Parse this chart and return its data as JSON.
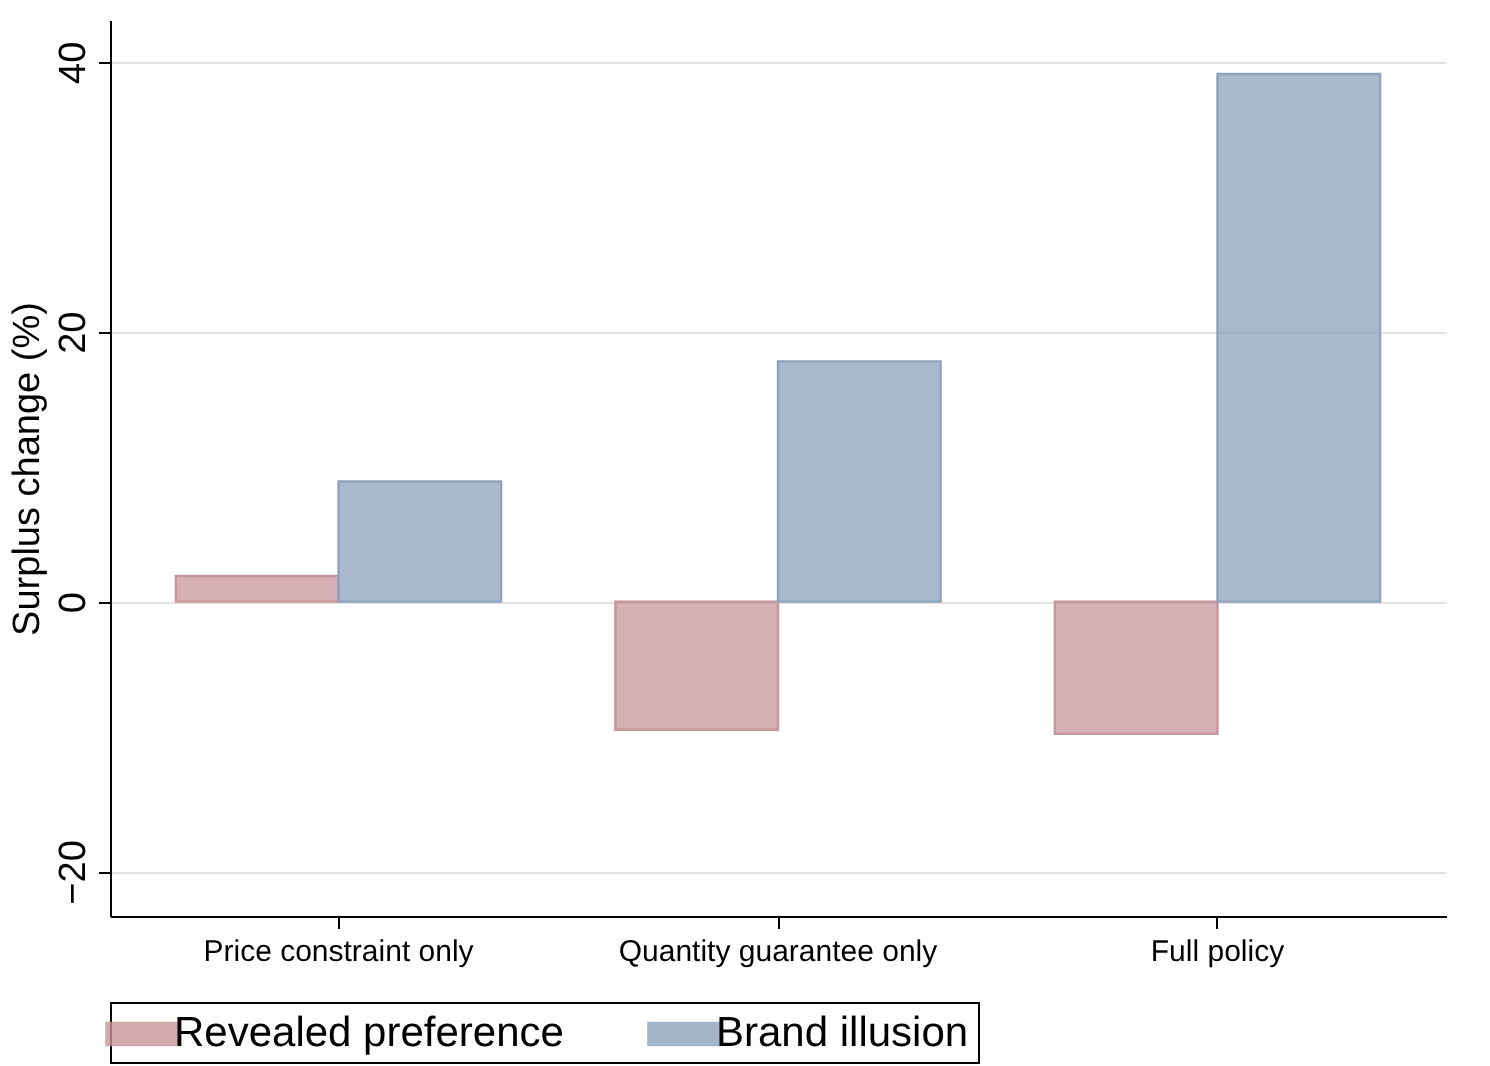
{
  "chart_data": {
    "type": "bar",
    "ylabel": "Surplus change (%)",
    "categories": [
      "Price constraint only",
      "Quantity guarantee only",
      "Full policy"
    ],
    "series": [
      {
        "name": "Revealed preference",
        "color": "#c8959b",
        "values": [
          1.9,
          -9.5,
          -9.8
        ]
      },
      {
        "name": "Brand illusion",
        "color": "#8ea3bd",
        "values": [
          8.9,
          17.8,
          39.1
        ]
      }
    ],
    "ylim": [
      -23.3,
      43.1
    ],
    "yticks": [
      -20,
      0,
      20,
      40
    ],
    "grid": "y",
    "legend": "bottom"
  }
}
